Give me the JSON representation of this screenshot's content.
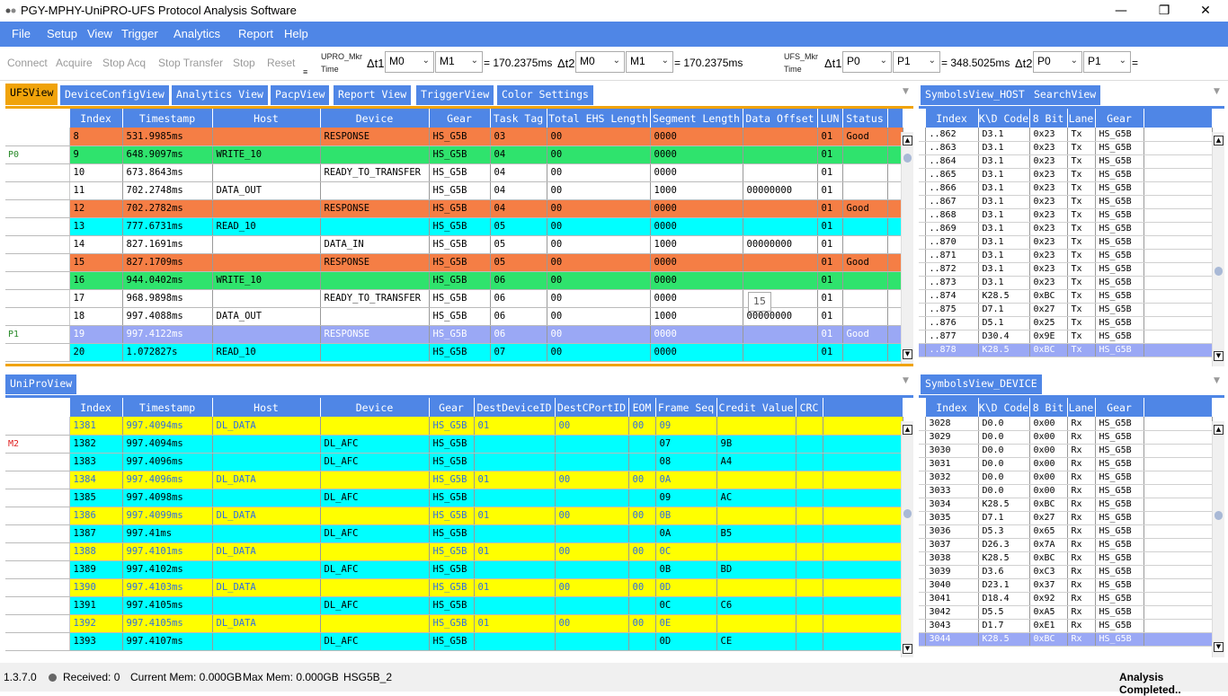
{
  "title": "PGY-MPHY-UniPRO-UFS Protocol Analysis Software",
  "menu": [
    "File",
    "Setup",
    "View",
    "Trigger",
    "Analytics",
    "Report",
    "Help"
  ],
  "toolbar": {
    "buttons": [
      "Connect",
      "Acquire",
      "Stop Acq",
      "Stop Transfer",
      "Stop",
      "Reset"
    ],
    "upro_label": "UPRO_Mkr",
    "time_label": "Time",
    "dt1": "Δt1",
    "dt2": "Δt2",
    "upro_dt1_a": "M0",
    "upro_dt1_b": "M1",
    "upro_dt1_val": "= 170.2375ms",
    "upro_dt2_a": "M0",
    "upro_dt2_b": "M1",
    "upro_dt2_val": "= 170.2375ms",
    "ufs_label": "UFS_Mkr",
    "ufs_time_label": "Time",
    "ufs_dt1_a": "P0",
    "ufs_dt1_b": "P1",
    "ufs_dt1_val": "= 348.5025ms",
    "ufs_dt2_a": "P0",
    "ufs_dt2_b": "P1",
    "ufs_dt2_val": "="
  },
  "ufs_tabs": [
    "UFSView",
    "DeviceConfigView",
    "Analytics View",
    "PacpView",
    "Report View",
    "TriggerView",
    "Color Settings"
  ],
  "ufs_columns": [
    "Index",
    "Timestamp",
    "Host",
    "Device",
    "Gear",
    "Task Tag",
    "Total EHS Length",
    "Segment Length",
    "Data Offset",
    "LUN",
    "Status"
  ],
  "ufs_rows": [
    {
      "mk": "",
      "cls": "orange",
      "v": [
        "8",
        "531.9985ms",
        "",
        "RESPONSE",
        "HS_G5B",
        "03",
        "00",
        "0000",
        "",
        "01",
        "Good"
      ]
    },
    {
      "mk": "P0",
      "cls": "green",
      "v": [
        "9",
        "648.9097ms",
        "WRITE_10",
        "",
        "HS_G5B",
        "04",
        "00",
        "0000",
        "",
        "01",
        ""
      ]
    },
    {
      "mk": "",
      "cls": "white",
      "v": [
        "10",
        "673.8643ms",
        "",
        "READY_TO_TRANSFER",
        "HS_G5B",
        "04",
        "00",
        "0000",
        "",
        "01",
        ""
      ]
    },
    {
      "mk": "",
      "cls": "white",
      "v": [
        "11",
        "702.2748ms",
        "DATA_OUT",
        "",
        "HS_G5B",
        "04",
        "00",
        "1000",
        "00000000",
        "01",
        ""
      ]
    },
    {
      "mk": "",
      "cls": "orange",
      "v": [
        "12",
        "702.2782ms",
        "",
        "RESPONSE",
        "HS_G5B",
        "04",
        "00",
        "0000",
        "",
        "01",
        "Good"
      ]
    },
    {
      "mk": "",
      "cls": "cyan",
      "v": [
        "13",
        "777.6731ms",
        "READ_10",
        "",
        "HS_G5B",
        "05",
        "00",
        "0000",
        "",
        "01",
        ""
      ]
    },
    {
      "mk": "",
      "cls": "white",
      "v": [
        "14",
        "827.1691ms",
        "",
        "DATA_IN",
        "HS_G5B",
        "05",
        "00",
        "1000",
        "00000000",
        "01",
        ""
      ]
    },
    {
      "mk": "",
      "cls": "orange",
      "v": [
        "15",
        "827.1709ms",
        "",
        "RESPONSE",
        "HS_G5B",
        "05",
        "00",
        "0000",
        "",
        "01",
        "Good"
      ]
    },
    {
      "mk": "",
      "cls": "green",
      "v": [
        "16",
        "944.0402ms",
        "WRITE_10",
        "",
        "HS_G5B",
        "06",
        "00",
        "0000",
        "",
        "01",
        ""
      ]
    },
    {
      "mk": "",
      "cls": "white",
      "v": [
        "17",
        "968.9898ms",
        "",
        "READY_TO_TRANSFER",
        "HS_G5B",
        "06",
        "00",
        "0000",
        "",
        "01",
        ""
      ]
    },
    {
      "mk": "",
      "cls": "white",
      "v": [
        "18",
        "997.4088ms",
        "DATA_OUT",
        "",
        "HS_G5B",
        "06",
        "00",
        "1000",
        "00000000",
        "01",
        ""
      ]
    },
    {
      "mk": "P1",
      "cls": "sel",
      "v": [
        "19",
        "997.4122ms",
        "",
        "RESPONSE",
        "HS_G5B",
        "06",
        "00",
        "0000",
        "",
        "01",
        "Good"
      ]
    },
    {
      "mk": "",
      "cls": "cyan",
      "v": [
        "20",
        "1.072827s",
        "READ_10",
        "",
        "HS_G5B",
        "07",
        "00",
        "0000",
        "",
        "01",
        ""
      ]
    }
  ],
  "tooltip": "15",
  "unipro_tab": "UniProView",
  "unipro_columns": [
    "Index",
    "Timestamp",
    "Host",
    "Device",
    "Gear",
    "DestDeviceID",
    "DestCPortID",
    "EOM",
    "Frame Seq",
    "Credit Value",
    "CRC"
  ],
  "unipro_rows": [
    {
      "mk": "",
      "cls": "yellow",
      "v": [
        "1381",
        "997.4094ms",
        "DL_DATA",
        "",
        "HS_G5B",
        "01",
        "00",
        "00",
        "09",
        "",
        ""
      ]
    },
    {
      "mk": "M2",
      "cls": "cyan",
      "v": [
        "1382",
        "997.4094ms",
        "",
        "DL_AFC",
        "HS_G5B",
        "",
        "",
        "",
        "07",
        "9B",
        ""
      ]
    },
    {
      "mk": "",
      "cls": "cyan",
      "v": [
        "1383",
        "997.4096ms",
        "",
        "DL_AFC",
        "HS_G5B",
        "",
        "",
        "",
        "08",
        "A4",
        ""
      ]
    },
    {
      "mk": "",
      "cls": "yellow",
      "v": [
        "1384",
        "997.4096ms",
        "DL_DATA",
        "",
        "HS_G5B",
        "01",
        "00",
        "00",
        "0A",
        "",
        ""
      ]
    },
    {
      "mk": "",
      "cls": "cyan",
      "v": [
        "1385",
        "997.4098ms",
        "",
        "DL_AFC",
        "HS_G5B",
        "",
        "",
        "",
        "09",
        "AC",
        ""
      ]
    },
    {
      "mk": "",
      "cls": "yellow",
      "v": [
        "1386",
        "997.4099ms",
        "DL_DATA",
        "",
        "HS_G5B",
        "01",
        "00",
        "00",
        "0B",
        "",
        ""
      ]
    },
    {
      "mk": "",
      "cls": "cyan",
      "v": [
        "1387",
        "997.41ms",
        "",
        "DL_AFC",
        "HS_G5B",
        "",
        "",
        "",
        "0A",
        "B5",
        ""
      ]
    },
    {
      "mk": "",
      "cls": "yellow",
      "v": [
        "1388",
        "997.4101ms",
        "DL_DATA",
        "",
        "HS_G5B",
        "01",
        "00",
        "00",
        "0C",
        "",
        ""
      ]
    },
    {
      "mk": "",
      "cls": "cyan",
      "v": [
        "1389",
        "997.4102ms",
        "",
        "DL_AFC",
        "HS_G5B",
        "",
        "",
        "",
        "0B",
        "BD",
        ""
      ]
    },
    {
      "mk": "",
      "cls": "yellow",
      "v": [
        "1390",
        "997.4103ms",
        "DL_DATA",
        "",
        "HS_G5B",
        "01",
        "00",
        "00",
        "0D",
        "",
        ""
      ]
    },
    {
      "mk": "",
      "cls": "cyan",
      "v": [
        "1391",
        "997.4105ms",
        "",
        "DL_AFC",
        "HS_G5B",
        "",
        "",
        "",
        "0C",
        "C6",
        ""
      ]
    },
    {
      "mk": "",
      "cls": "yellow",
      "v": [
        "1392",
        "997.4105ms",
        "DL_DATA",
        "",
        "HS_G5B",
        "01",
        "00",
        "00",
        "0E",
        "",
        ""
      ]
    },
    {
      "mk": "",
      "cls": "cyan",
      "v": [
        "1393",
        "997.4107ms",
        "",
        "DL_AFC",
        "HS_G5B",
        "",
        "",
        "",
        "0D",
        "CE",
        ""
      ]
    }
  ],
  "host_tabs": [
    "SymbolsView_HOST",
    "SearchView"
  ],
  "sym_columns": [
    "Index",
    "K\\D Code",
    "8 Bit",
    "Lane",
    "Gear"
  ],
  "host_rows": [
    [
      "..862",
      "D3.1",
      "0x23",
      "Tx",
      "HS_G5B"
    ],
    [
      "..863",
      "D3.1",
      "0x23",
      "Tx",
      "HS_G5B"
    ],
    [
      "..864",
      "D3.1",
      "0x23",
      "Tx",
      "HS_G5B"
    ],
    [
      "..865",
      "D3.1",
      "0x23",
      "Tx",
      "HS_G5B"
    ],
    [
      "..866",
      "D3.1",
      "0x23",
      "Tx",
      "HS_G5B"
    ],
    [
      "..867",
      "D3.1",
      "0x23",
      "Tx",
      "HS_G5B"
    ],
    [
      "..868",
      "D3.1",
      "0x23",
      "Tx",
      "HS_G5B"
    ],
    [
      "..869",
      "D3.1",
      "0x23",
      "Tx",
      "HS_G5B"
    ],
    [
      "..870",
      "D3.1",
      "0x23",
      "Tx",
      "HS_G5B"
    ],
    [
      "..871",
      "D3.1",
      "0x23",
      "Tx",
      "HS_G5B"
    ],
    [
      "..872",
      "D3.1",
      "0x23",
      "Tx",
      "HS_G5B"
    ],
    [
      "..873",
      "D3.1",
      "0x23",
      "Tx",
      "HS_G5B"
    ],
    [
      "..874",
      "K28.5",
      "0xBC",
      "Tx",
      "HS_G5B"
    ],
    [
      "..875",
      "D7.1",
      "0x27",
      "Tx",
      "HS_G5B"
    ],
    [
      "..876",
      "D5.1",
      "0x25",
      "Tx",
      "HS_G5B"
    ],
    [
      "..877",
      "D30.4",
      "0x9E",
      "Tx",
      "HS_G5B"
    ],
    [
      "..878",
      "K28.5",
      "0xBC",
      "Tx",
      "HS_G5B"
    ]
  ],
  "device_tab": "SymbolsView_DEVICE",
  "device_rows": [
    [
      "3028",
      "D0.0",
      "0x00",
      "Rx",
      "HS_G5B"
    ],
    [
      "3029",
      "D0.0",
      "0x00",
      "Rx",
      "HS_G5B"
    ],
    [
      "3030",
      "D0.0",
      "0x00",
      "Rx",
      "HS_G5B"
    ],
    [
      "3031",
      "D0.0",
      "0x00",
      "Rx",
      "HS_G5B"
    ],
    [
      "3032",
      "D0.0",
      "0x00",
      "Rx",
      "HS_G5B"
    ],
    [
      "3033",
      "D0.0",
      "0x00",
      "Rx",
      "HS_G5B"
    ],
    [
      "3034",
      "K28.5",
      "0xBC",
      "Rx",
      "HS_G5B"
    ],
    [
      "3035",
      "D7.1",
      "0x27",
      "Rx",
      "HS_G5B"
    ],
    [
      "3036",
      "D5.3",
      "0x65",
      "Rx",
      "HS_G5B"
    ],
    [
      "3037",
      "D26.3",
      "0x7A",
      "Rx",
      "HS_G5B"
    ],
    [
      "3038",
      "K28.5",
      "0xBC",
      "Rx",
      "HS_G5B"
    ],
    [
      "3039",
      "D3.6",
      "0xC3",
      "Rx",
      "HS_G5B"
    ],
    [
      "3040",
      "D23.1",
      "0x37",
      "Rx",
      "HS_G5B"
    ],
    [
      "3041",
      "D18.4",
      "0x92",
      "Rx",
      "HS_G5B"
    ],
    [
      "3042",
      "D5.5",
      "0xA5",
      "Rx",
      "HS_G5B"
    ],
    [
      "3043",
      "D1.7",
      "0xE1",
      "Rx",
      "HS_G5B"
    ],
    [
      "3044",
      "K28.5",
      "0xBC",
      "Rx",
      "HS_G5B"
    ]
  ],
  "status": {
    "version": "1.3.7.0",
    "received": "Received: 0",
    "current_mem": "Current Mem: 0.000GB",
    "max_mem": "Max Mem: 0.000GB",
    "gear": "HSG5B_2",
    "analysis": "Analysis Completed.."
  }
}
